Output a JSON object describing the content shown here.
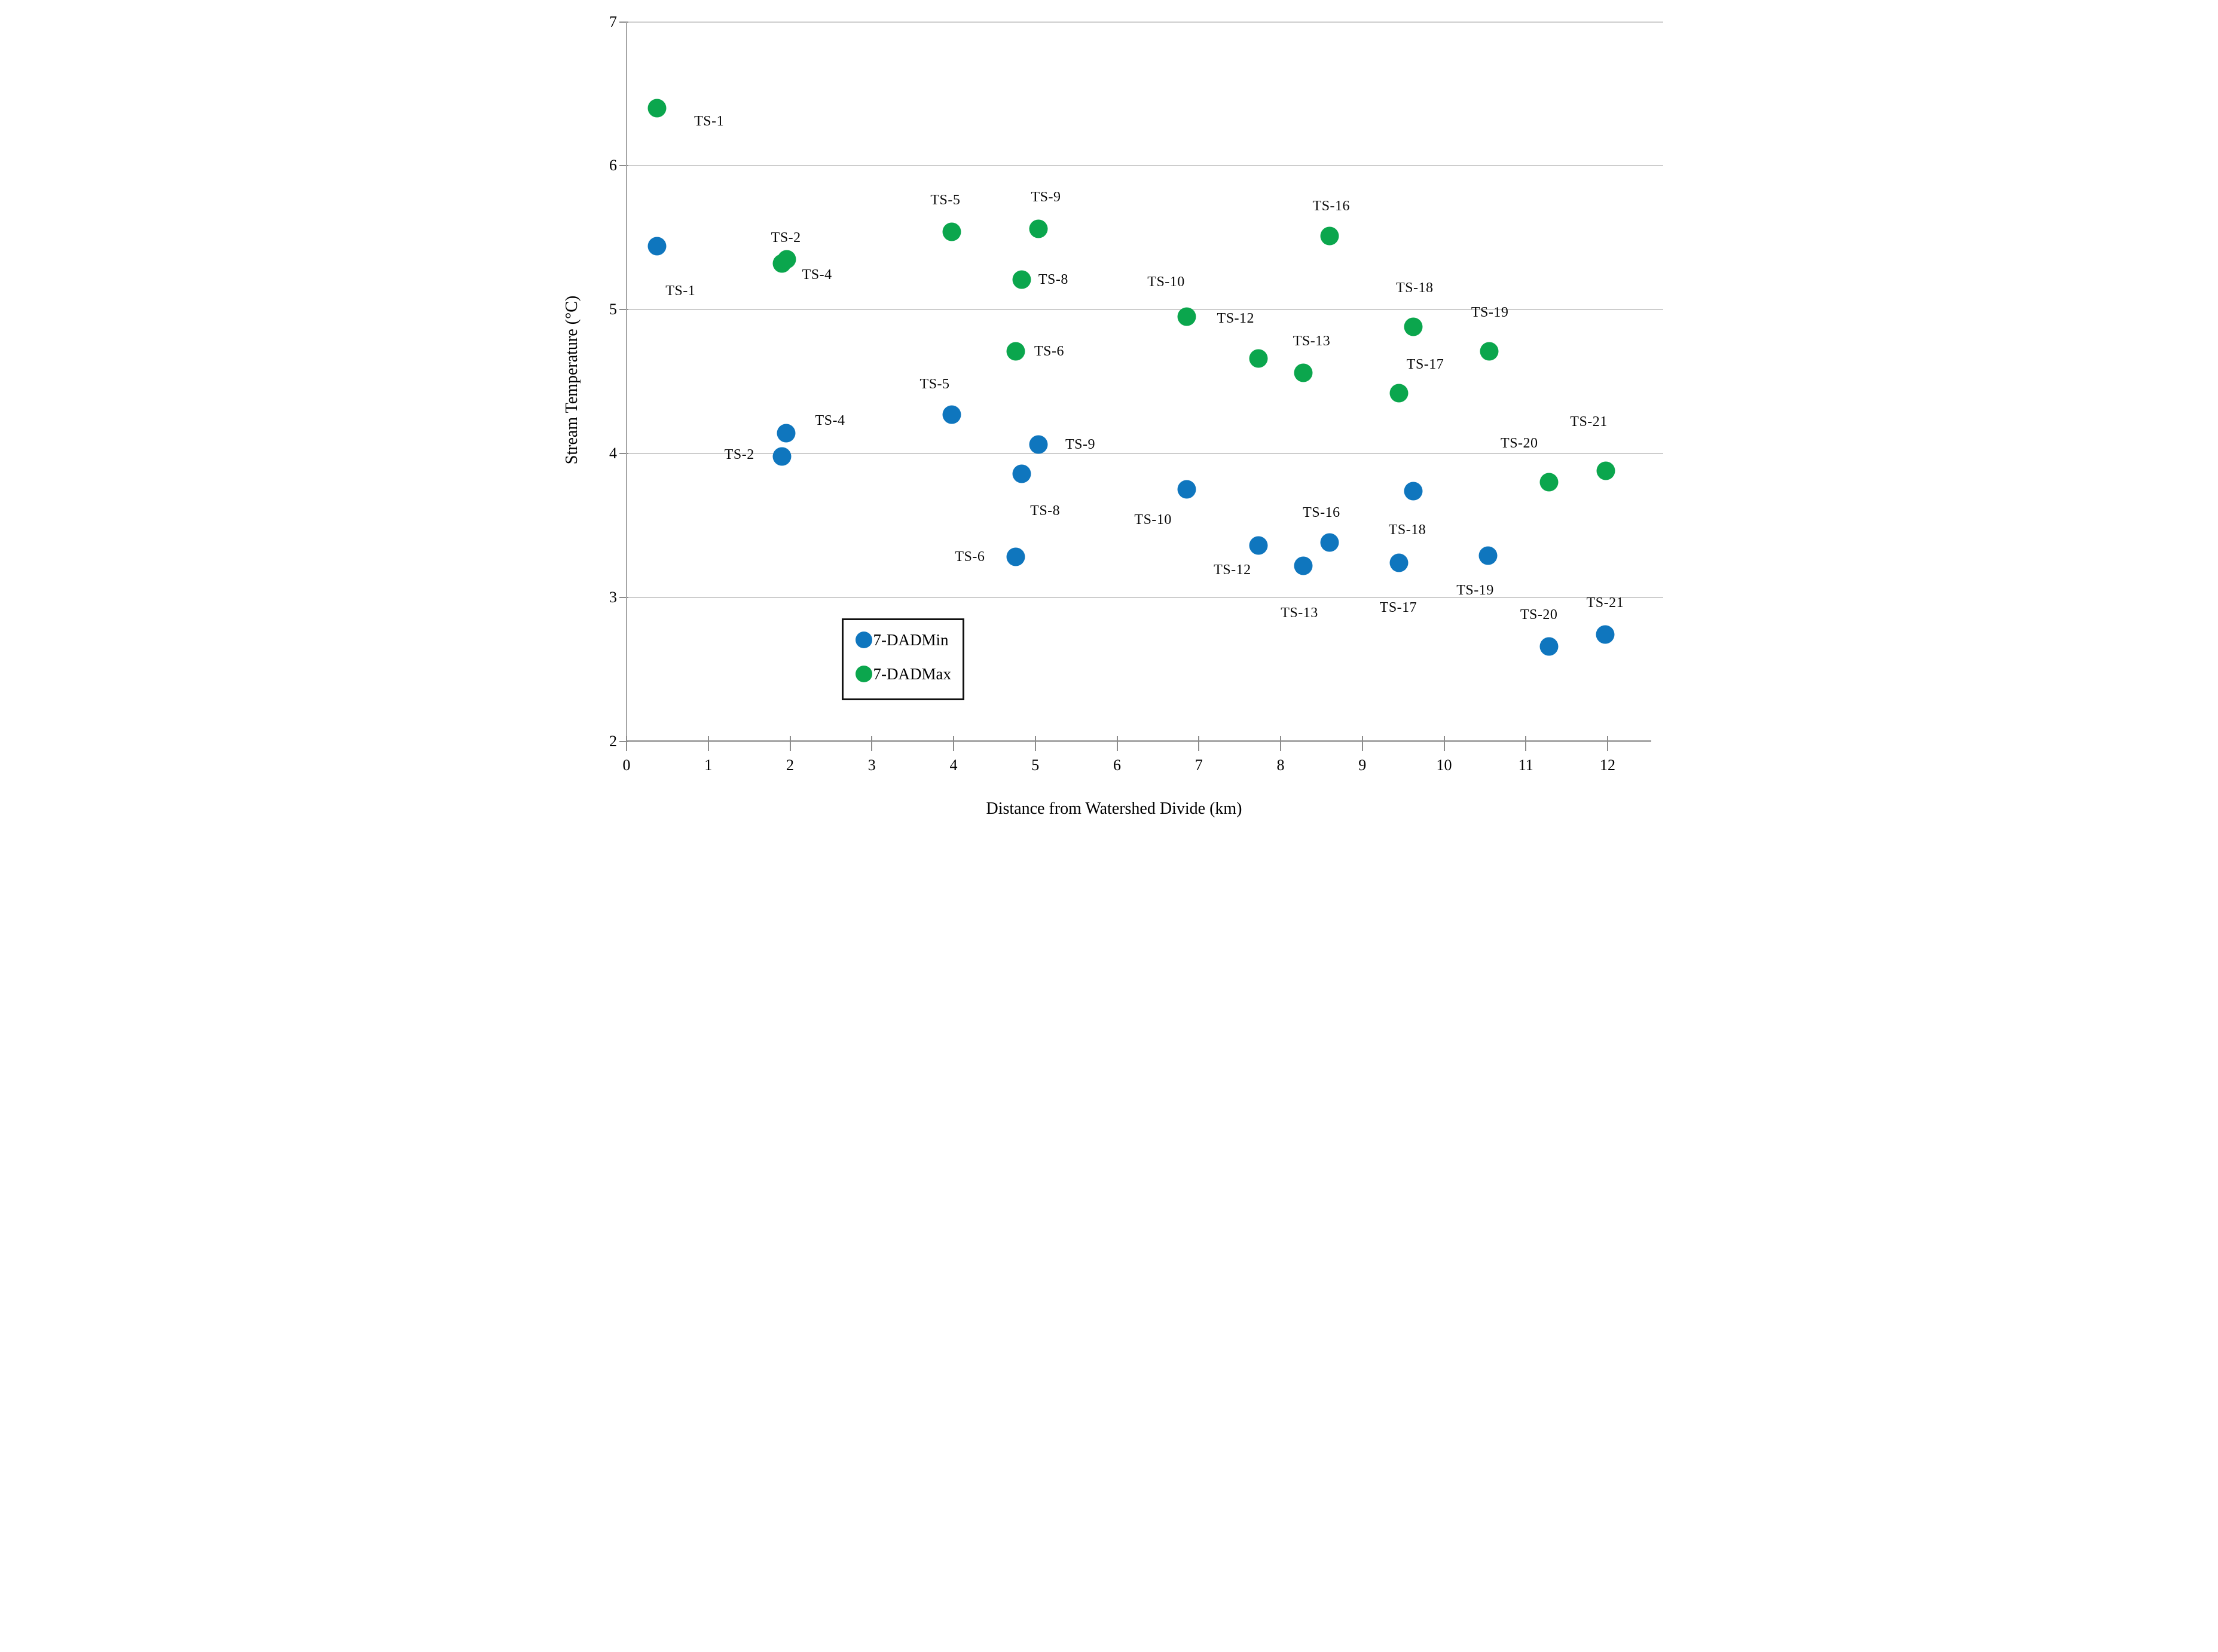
{
  "chart_data": {
    "type": "scatter",
    "title": "",
    "xlabel": "Distance from Watershed Divide (km)",
    "ylabel": "Stream Temperature (°C)",
    "xlim": [
      0,
      12.6
    ],
    "ylim": [
      2,
      7
    ],
    "x_ticks": [
      0,
      1,
      2,
      3,
      4,
      5,
      6,
      7,
      8,
      9,
      10,
      11,
      12
    ],
    "y_ticks": [
      2,
      3,
      4,
      5,
      6,
      7
    ],
    "grid": "horizontal-only",
    "legend_position": "inside-lower-left",
    "series": [
      {
        "name": "7-DADMin",
        "color": "#0F76BE",
        "points": [
          {
            "site": "TS-1",
            "x": 0.37,
            "y": 5.44,
            "label_at": [
              0.66,
              5.13
            ]
          },
          {
            "site": "TS-2",
            "x": 1.9,
            "y": 3.98,
            "label_at": [
              1.38,
              3.99
            ]
          },
          {
            "site": "TS-4",
            "x": 1.95,
            "y": 4.14,
            "label_at": [
              2.49,
              4.23
            ]
          },
          {
            "site": "TS-5",
            "x": 3.98,
            "y": 4.27,
            "label_at": [
              3.77,
              4.48
            ]
          },
          {
            "site": "TS-6",
            "x": 4.76,
            "y": 3.28,
            "label_at": [
              4.2,
              3.28
            ]
          },
          {
            "site": "TS-8",
            "x": 4.83,
            "y": 3.86,
            "label_at": [
              5.12,
              3.6
            ]
          },
          {
            "site": "TS-9",
            "x": 5.04,
            "y": 4.06,
            "label_at": [
              5.55,
              4.06
            ]
          },
          {
            "site": "TS-10",
            "x": 6.85,
            "y": 3.75,
            "label_at": [
              6.44,
              3.54
            ]
          },
          {
            "site": "TS-12",
            "x": 7.73,
            "y": 3.36,
            "label_at": [
              7.41,
              3.19
            ]
          },
          {
            "site": "TS-13",
            "x": 8.28,
            "y": 3.22,
            "label_at": [
              8.23,
              2.89
            ]
          },
          {
            "site": "TS-16",
            "x": 8.6,
            "y": 3.38,
            "label_at": [
              8.5,
              3.59
            ]
          },
          {
            "site": "TS-17",
            "x": 9.45,
            "y": 3.24,
            "label_at": [
              9.44,
              2.93
            ]
          },
          {
            "site": "TS-18",
            "x": 9.62,
            "y": 3.74,
            "label_at": [
              9.55,
              3.47
            ]
          },
          {
            "site": "TS-19",
            "x": 10.54,
            "y": 3.29,
            "label_at": [
              10.38,
              3.05
            ]
          },
          {
            "site": "TS-20",
            "x": 11.28,
            "y": 2.66,
            "label_at": [
              11.16,
              2.88
            ]
          },
          {
            "site": "TS-21",
            "x": 11.97,
            "y": 2.74,
            "label_at": [
              11.97,
              2.96
            ]
          }
        ]
      },
      {
        "name": "7-DADMax",
        "color": "#0BA64D",
        "points": [
          {
            "site": "TS-1",
            "x": 0.37,
            "y": 6.4,
            "label_at": [
              1.01,
              6.31
            ]
          },
          {
            "site": "TS-2",
            "x": 1.9,
            "y": 5.32,
            "label_at": [
              1.95,
              5.5
            ]
          },
          {
            "site": "TS-4",
            "x": 1.96,
            "y": 5.35,
            "label_at": [
              2.33,
              5.24
            ]
          },
          {
            "site": "TS-5",
            "x": 3.98,
            "y": 5.54,
            "label_at": [
              3.9,
              5.76
            ]
          },
          {
            "site": "TS-6",
            "x": 4.76,
            "y": 4.71,
            "label_at": [
              5.17,
              4.71
            ]
          },
          {
            "site": "TS-8",
            "x": 4.83,
            "y": 5.21,
            "label_at": [
              5.22,
              5.21
            ]
          },
          {
            "site": "TS-9",
            "x": 5.04,
            "y": 5.56,
            "label_at": [
              5.13,
              5.78
            ]
          },
          {
            "site": "TS-10",
            "x": 6.85,
            "y": 4.95,
            "label_at": [
              6.6,
              5.19
            ]
          },
          {
            "site": "TS-12",
            "x": 7.73,
            "y": 4.66,
            "label_at": [
              7.45,
              4.94
            ]
          },
          {
            "site": "TS-13",
            "x": 8.28,
            "y": 4.56,
            "label_at": [
              8.38,
              4.78
            ]
          },
          {
            "site": "TS-16",
            "x": 8.6,
            "y": 5.51,
            "label_at": [
              8.62,
              5.72
            ]
          },
          {
            "site": "TS-17",
            "x": 9.45,
            "y": 4.42,
            "label_at": [
              9.77,
              4.62
            ]
          },
          {
            "site": "TS-18",
            "x": 9.62,
            "y": 4.88,
            "label_at": [
              9.64,
              5.15
            ]
          },
          {
            "site": "TS-19",
            "x": 10.55,
            "y": 4.71,
            "label_at": [
              10.56,
              4.98
            ]
          },
          {
            "site": "TS-20",
            "x": 11.28,
            "y": 3.8,
            "label_at": [
              10.92,
              4.07
            ]
          },
          {
            "site": "TS-21",
            "x": 11.98,
            "y": 3.88,
            "label_at": [
              11.77,
              4.22
            ]
          }
        ]
      }
    ]
  }
}
